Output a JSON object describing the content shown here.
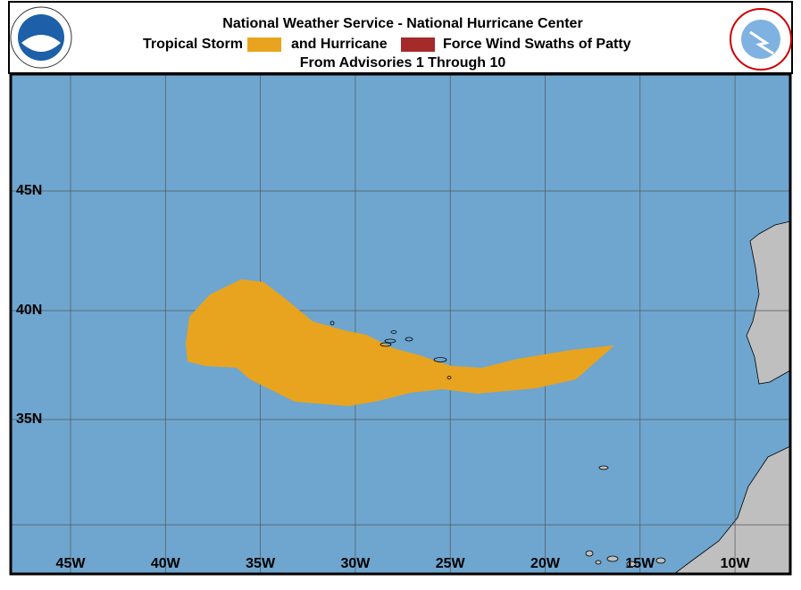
{
  "header": {
    "line1": "National Weather Service - National Hurricane Center",
    "legend_ts": "Tropical Storm",
    "legend_and": "and Hurricane",
    "legend_end": "Force Wind Swaths of Patty",
    "line3": "From Advisories 1 Through 10"
  },
  "map": {
    "lat_labels": [
      "45N",
      "40N",
      "35N"
    ],
    "lon_labels": [
      "45W",
      "40W",
      "35W",
      "30W",
      "25W",
      "20W",
      "15W",
      "10W"
    ]
  }
}
